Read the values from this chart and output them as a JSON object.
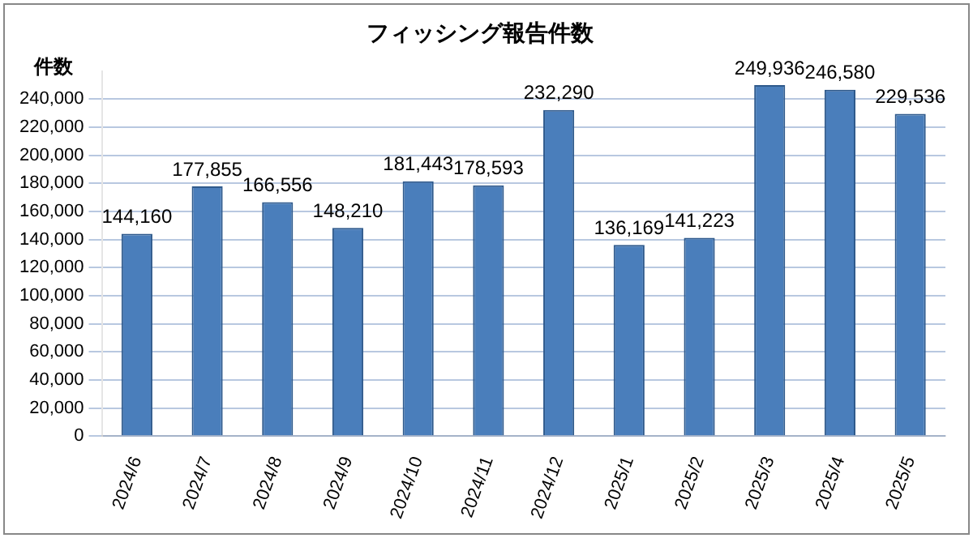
{
  "chart_data": {
    "type": "bar",
    "title": "フィッシング報告件数",
    "ylabel": "件数",
    "categories": [
      "2024/6",
      "2024/7",
      "2024/8",
      "2024/9",
      "2024/10",
      "2024/11",
      "2024/12",
      "2025/1",
      "2025/2",
      "2025/3",
      "2025/4",
      "2025/5"
    ],
    "values": [
      144160,
      177855,
      166556,
      148210,
      181443,
      178593,
      232290,
      136169,
      141223,
      249936,
      246580,
      229536
    ],
    "value_labels": [
      "144,160",
      "177,855",
      "166,556",
      "148,210",
      "181,443",
      "178,593",
      "232,290",
      "136,169",
      "141,223",
      "249,936",
      "246,580",
      "229,536"
    ],
    "color": "#4a7ebb",
    "ylim": [
      0,
      260000
    ],
    "yticks": [
      {
        "value": 0,
        "label": "0"
      },
      {
        "value": 20000,
        "label": "20,000"
      },
      {
        "value": 40000,
        "label": "40,000"
      },
      {
        "value": 60000,
        "label": "60,000"
      },
      {
        "value": 80000,
        "label": "80,000"
      },
      {
        "value": 100000,
        "label": "100,000"
      },
      {
        "value": 120000,
        "label": "120,000"
      },
      {
        "value": 140000,
        "label": "140,000"
      },
      {
        "value": 160000,
        "label": "160,000"
      },
      {
        "value": 180000,
        "label": "180,000"
      },
      {
        "value": 200000,
        "label": "200,000"
      },
      {
        "value": 220000,
        "label": "220,000"
      },
      {
        "value": 240000,
        "label": "240,000"
      }
    ],
    "grid": "y"
  }
}
